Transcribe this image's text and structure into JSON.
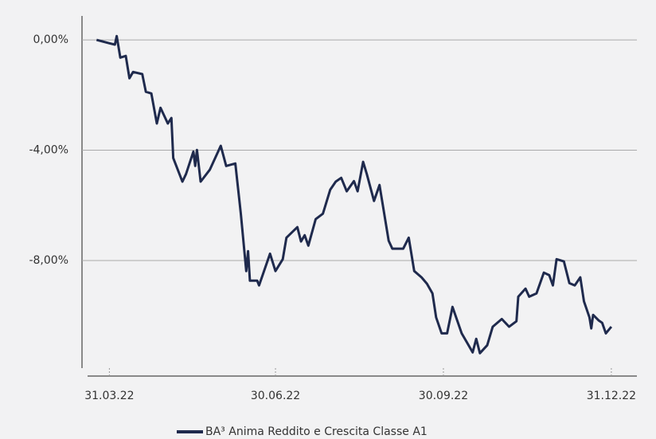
{
  "chart_data": {
    "type": "line",
    "x": [
      "2022-03-24",
      "2022-03-31",
      "2022-04-03",
      "2022-04-04",
      "2022-04-06",
      "2022-04-09",
      "2022-04-11",
      "2022-04-13",
      "2022-04-18",
      "2022-04-20",
      "2022-04-23",
      "2022-04-26",
      "2022-04-28",
      "2022-05-02",
      "2022-05-04",
      "2022-05-05",
      "2022-05-10",
      "2022-05-12",
      "2022-05-16",
      "2022-05-17",
      "2022-05-18",
      "2022-05-20",
      "2022-05-25",
      "2022-05-31",
      "2022-06-03",
      "2022-06-08",
      "2022-06-11",
      "2022-06-14",
      "2022-06-15",
      "2022-06-16",
      "2022-06-20",
      "2022-06-21",
      "2022-06-27",
      "2022-06-30",
      "2022-07-04",
      "2022-07-06",
      "2022-07-12",
      "2022-07-14",
      "2022-07-16",
      "2022-07-18",
      "2022-07-22",
      "2022-07-26",
      "2022-07-30",
      "2022-08-02",
      "2022-08-05",
      "2022-08-08",
      "2022-08-12",
      "2022-08-14",
      "2022-08-17",
      "2022-08-19",
      "2022-08-23",
      "2022-08-26",
      "2022-08-31",
      "2022-09-02",
      "2022-09-08",
      "2022-09-11",
      "2022-09-14",
      "2022-09-18",
      "2022-09-21",
      "2022-09-24",
      "2022-09-26",
      "2022-09-29",
      "2022-10-02",
      "2022-10-05",
      "2022-10-10",
      "2022-10-13",
      "2022-10-16",
      "2022-10-18",
      "2022-10-20",
      "2022-10-24",
      "2022-10-27",
      "2022-11-01",
      "2022-11-05",
      "2022-11-09",
      "2022-11-10",
      "2022-11-14",
      "2022-11-16",
      "2022-11-20",
      "2022-11-24",
      "2022-11-27",
      "2022-11-29",
      "2022-12-01",
      "2022-12-05",
      "2022-12-08",
      "2022-12-11",
      "2022-12-14",
      "2022-12-16",
      "2022-12-19",
      "2022-12-20",
      "2022-12-21",
      "2022-12-24",
      "2022-12-26",
      "2022-12-28",
      "2022-12-31"
    ],
    "series": [
      {
        "name": "BA³ Anima Reddito e Crescita Classe A1",
        "color": "#1f2a4d",
        "values": [
          0.0,
          -0.12,
          -0.17,
          0.14,
          -0.64,
          -0.58,
          -1.39,
          -1.16,
          -1.24,
          -1.88,
          -1.94,
          -3.03,
          -2.46,
          -3.03,
          -2.83,
          -4.28,
          -5.14,
          -4.86,
          -4.05,
          -4.57,
          -3.99,
          -5.14,
          -4.71,
          -3.84,
          -4.57,
          -4.48,
          -6.3,
          -8.38,
          -7.66,
          -8.73,
          -8.73,
          -8.9,
          -7.75,
          -8.38,
          -7.95,
          -7.17,
          -6.79,
          -7.31,
          -7.08,
          -7.46,
          -6.5,
          -6.3,
          -5.43,
          -5.14,
          -5.0,
          -5.49,
          -5.12,
          -5.49,
          -4.42,
          -4.86,
          -5.84,
          -5.26,
          -7.28,
          -7.57,
          -7.57,
          -7.17,
          -8.38,
          -8.61,
          -8.84,
          -9.19,
          -10.06,
          -10.64,
          -10.64,
          -9.68,
          -10.64,
          -10.98,
          -11.33,
          -10.84,
          -11.36,
          -11.07,
          -10.4,
          -10.12,
          -10.4,
          -10.2,
          -9.31,
          -9.02,
          -9.31,
          -9.19,
          -8.44,
          -8.53,
          -8.9,
          -7.95,
          -8.03,
          -8.82,
          -8.9,
          -8.61,
          -9.48,
          -10.06,
          -10.46,
          -9.97,
          -10.17,
          -10.26,
          -10.64,
          -10.4
        ]
      }
    ],
    "xlim": [
      "2022-03-16",
      "2023-01-14"
    ],
    "xticks": [
      {
        "value": "2022-03-31",
        "label": "31.03.22"
      },
      {
        "value": "2022-06-30",
        "label": "30.06.22"
      },
      {
        "value": "2022-09-30",
        "label": "30.09.22"
      },
      {
        "value": "2022-12-31",
        "label": "31.12.22"
      }
    ],
    "ylim": [
      -11.9,
      0.87
    ],
    "yticks": [
      {
        "value": 0,
        "label": "0,00%"
      },
      {
        "value": -4,
        "label": "-4,00%"
      },
      {
        "value": -8,
        "label": "-8,00%"
      }
    ],
    "grid": true,
    "legend": "bottom"
  }
}
